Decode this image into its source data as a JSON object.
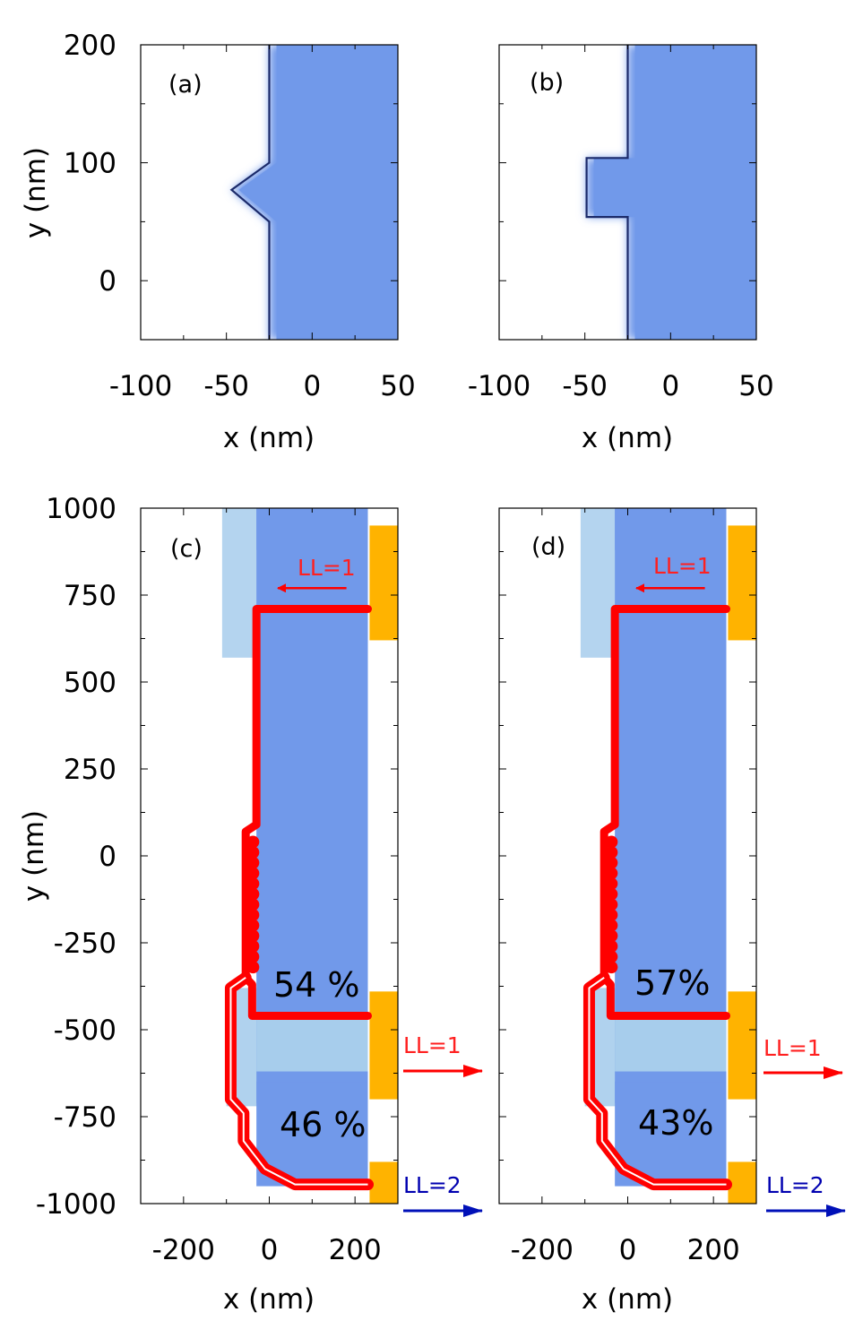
{
  "colors": {
    "gas": "#7199ea",
    "gas_light": "#a7cdec",
    "edge_line": "#1b2a6a",
    "trajectory": "#ff0000",
    "contact": "#ffb300",
    "ll1": "#ff0000",
    "ll2": "#0010b8"
  },
  "chart_data": [
    {
      "type": "area",
      "panel": "(a)",
      "xlabel": "x (nm)",
      "ylabel": "y (nm)",
      "xlim": [
        -100,
        50
      ],
      "ylim": [
        -50,
        200
      ],
      "xticks": [
        -100,
        -50,
        0,
        50
      ],
      "yticks": [
        0,
        100,
        200
      ],
      "edge": [
        [
          -25,
          200
        ],
        [
          -25,
          100
        ],
        [
          -47,
          77
        ],
        [
          -25,
          50
        ],
        [
          -25,
          -50
        ]
      ],
      "edge_shape": "triangular"
    },
    {
      "type": "area",
      "panel": "(b)",
      "xlabel": "x (nm)",
      "ylabel": "",
      "xlim": [
        -100,
        50
      ],
      "ylim": [
        -50,
        200
      ],
      "xticks": [
        -100,
        -50,
        0,
        50
      ],
      "yticks": [
        0,
        100,
        200
      ],
      "edge": [
        [
          -25,
          200
        ],
        [
          -25,
          104
        ],
        [
          -49,
          104
        ],
        [
          -49,
          54
        ],
        [
          -25,
          54
        ],
        [
          -25,
          -50
        ]
      ],
      "edge_shape": "rectangular"
    },
    {
      "type": "scatter",
      "panel": "(c)",
      "xlabel": "x (nm)",
      "ylabel": "y (nm)",
      "xlim": [
        -300,
        300
      ],
      "ylim": [
        -1000,
        1000
      ],
      "xticks": [
        -200,
        0,
        200
      ],
      "yticks": [
        -1000,
        -750,
        -500,
        -250,
        0,
        250,
        500,
        750,
        1000
      ],
      "transmitted_percent": "54 %",
      "reflected_percent": "46 %",
      "labels": {
        "incoming": "LL=1",
        "outgoing_1": "LL=1",
        "outgoing_2": "LL=2"
      }
    },
    {
      "type": "scatter",
      "panel": "(d)",
      "xlabel": "x (nm)",
      "ylabel": "",
      "xlim": [
        -300,
        300
      ],
      "ylim": [
        -1000,
        1000
      ],
      "xticks": [
        -200,
        0,
        200
      ],
      "yticks": [
        -1000,
        -750,
        -500,
        -250,
        0,
        250,
        500,
        750,
        1000
      ],
      "transmitted_percent": "57%",
      "reflected_percent": "43%",
      "labels": {
        "incoming": "LL=1",
        "outgoing_1": "LL=1",
        "outgoing_2": "LL=2"
      }
    }
  ]
}
